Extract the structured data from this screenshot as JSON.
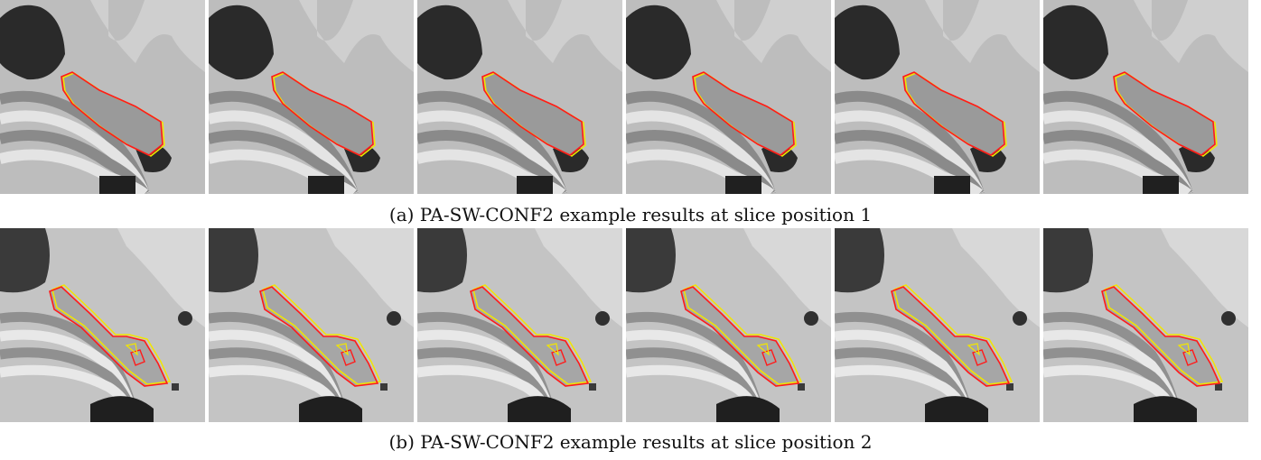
{
  "figure": {
    "captions": {
      "a": "(a) PA-SW-CONF2 example results at slice position 1",
      "b": "(b) PA-SW-CONF2 example results at slice position 2"
    },
    "panel_count_per_row": 6,
    "colors": {
      "contour_primary": "#ff1a1a",
      "contour_secondary": "#f2e600",
      "tissue_light": "#c8c8c8",
      "tissue_dark": "#2a2a2a"
    }
  }
}
